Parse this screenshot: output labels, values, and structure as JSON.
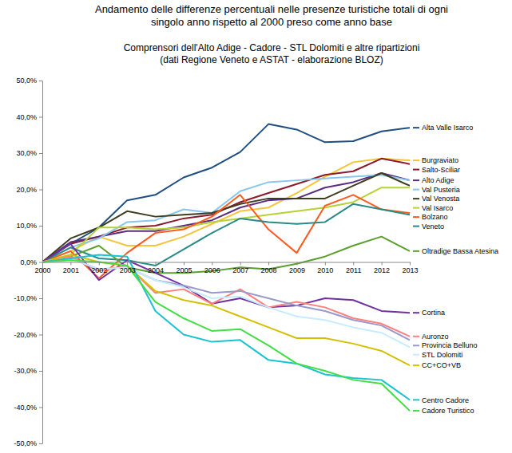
{
  "chart_data": {
    "type": "line",
    "title": [
      "Andamento delle differenze percentuali nelle presenze turistiche totali di ogni",
      "singolo anno rispetto al 2000 preso come anno base"
    ],
    "subtitle": [
      "Comprensori dell'Alto Adige - Cadore - STL Dolomiti e altre ripartizioni",
      "(dati Regione Veneto e ASTAT - elaborazione BLOZ)"
    ],
    "x": [
      2000,
      2001,
      2002,
      2003,
      2004,
      2005,
      2006,
      2007,
      2008,
      2009,
      2010,
      2011,
      2012,
      2013
    ],
    "xlim": [
      2000,
      2013
    ],
    "xticks": [
      2000,
      2001,
      2002,
      2003,
      2004,
      2005,
      2006,
      2007,
      2008,
      2009,
      2010,
      2011,
      2012,
      2013
    ],
    "ylim": [
      -50,
      50
    ],
    "yticks": [
      {
        "value": 50,
        "label": "50,0%"
      },
      {
        "value": 40,
        "label": "40,0%"
      },
      {
        "value": 30,
        "label": "30,0%"
      },
      {
        "value": 20,
        "label": "20,0%"
      },
      {
        "value": 10,
        "label": "10,0%"
      },
      {
        "value": 0,
        "label": "0,0%"
      },
      {
        "value": -10,
        "label": "-10,0%"
      },
      {
        "value": -20,
        "label": "-20,0%"
      },
      {
        "value": -30,
        "label": "-30,0%"
      },
      {
        "value": -40,
        "label": "-40,0%"
      },
      {
        "value": -50,
        "label": "-50,0%"
      }
    ],
    "grid": false,
    "legend": "right",
    "series": [
      {
        "name": "Alta Valle Isarco",
        "color": "#1f4e80",
        "values": [
          0,
          5,
          9.5,
          17,
          18.5,
          23.3,
          26,
          30.3,
          38,
          36.5,
          33,
          33.3,
          36,
          37
        ]
      },
      {
        "name": "Burgraviato",
        "color": "#f5c43a",
        "values": [
          0,
          3,
          7,
          4.5,
          4.5,
          7,
          10.5,
          14,
          15,
          19,
          23.5,
          27.5,
          28.5,
          28
        ]
      },
      {
        "name": "Salto-Sciliar",
        "color": "#8b1a2a",
        "values": [
          0,
          5,
          7,
          9.5,
          10,
          12,
          13,
          16.5,
          19,
          21.5,
          24,
          25,
          28.5,
          27
        ]
      },
      {
        "name": "Alto Adige",
        "color": "#5b2c83",
        "values": [
          0,
          5.5,
          7,
          8.5,
          8.5,
          10,
          11.5,
          15,
          17,
          17.5,
          20.5,
          22,
          24.5,
          22.5
        ]
      },
      {
        "name": "Val Pusteria",
        "color": "#87c7ee",
        "values": [
          0,
          4,
          6.5,
          11,
          11.5,
          14.5,
          13.5,
          19.5,
          22,
          22.5,
          23,
          23.5,
          24,
          22.5
        ]
      },
      {
        "name": "Val Venosta",
        "color": "#3d3d1f",
        "values": [
          0,
          6.5,
          9.5,
          14,
          12.5,
          13,
          13.5,
          16,
          17.5,
          17.5,
          17.5,
          21,
          24.5,
          21
        ]
      },
      {
        "name": "Val Isarco",
        "color": "#b5d334",
        "values": [
          0,
          2,
          9.5,
          9.5,
          9,
          9.5,
          11,
          12,
          13,
          14,
          15,
          16.5,
          20.5,
          20.5
        ]
      },
      {
        "name": "Bolzano",
        "color": "#ff5a1f",
        "values": [
          0,
          3,
          -4.5,
          2.5,
          8,
          9,
          12.5,
          18.5,
          9,
          2.5,
          15.5,
          18.5,
          14.5,
          13.5
        ]
      },
      {
        "name": "Veneto",
        "color": "#2a8a8a",
        "values": [
          0,
          4,
          1,
          0.5,
          -1,
          3.5,
          8,
          12,
          11,
          10.5,
          11,
          16,
          14.5,
          13
        ]
      },
      {
        "name": "Oltradige Bassa Atesina",
        "color": "#5aa02c",
        "values": [
          0,
          1.5,
          4.5,
          -1.5,
          -3,
          -3,
          -2.5,
          -1.5,
          -2,
          -0.5,
          1.5,
          4.5,
          7,
          3
        ]
      },
      {
        "name": "Cortina",
        "color": "#7030a0",
        "values": [
          0,
          5,
          -5,
          0.5,
          -3,
          -6.5,
          -11.5,
          -10,
          -12.5,
          -12,
          -10,
          -10.5,
          -13.5,
          -14
        ]
      },
      {
        "name": "Auronzo",
        "color": "#ff7f7f",
        "values": [
          0,
          1.5,
          -2.5,
          -1,
          -8.5,
          -7.5,
          -11.5,
          -7.5,
          -12.5,
          -11,
          -12.5,
          -15.5,
          -17,
          -20.5
        ]
      },
      {
        "name": "Provincia Belluno",
        "color": "#9999cc",
        "values": [
          0,
          1,
          -2,
          -1.5,
          -5,
          -6.5,
          -8.5,
          -8,
          -10,
          -12,
          -13.5,
          -16,
          -17.5,
          -21.5
        ]
      },
      {
        "name": "STL Dolomiti",
        "color": "#c6ecff",
        "values": [
          0,
          1,
          -2,
          -1.5,
          -5,
          -7,
          -10,
          -9.5,
          -12.5,
          -15,
          -16,
          -18,
          -19.5,
          -23.5
        ]
      },
      {
        "name": "CC+CO+VB",
        "color": "#d4c000",
        "values": [
          0,
          2,
          0,
          -1,
          -8,
          -10.5,
          -12,
          -15,
          -18,
          -21,
          -21,
          -22.5,
          -24.5,
          -28.5
        ]
      },
      {
        "name": "Centro Cadore",
        "color": "#19c3d1",
        "values": [
          0,
          1,
          2,
          1.5,
          -13.5,
          -20,
          -22,
          -21.5,
          -27,
          -28,
          -31,
          -32,
          -32.5,
          -38
        ]
      },
      {
        "name": "Cadore Turistico",
        "color": "#44dd44",
        "values": [
          0,
          0.5,
          0,
          -1,
          -11,
          -15.5,
          -19,
          -18.5,
          -23,
          -28,
          -30,
          -32.5,
          -33.5,
          -41
        ]
      }
    ]
  }
}
